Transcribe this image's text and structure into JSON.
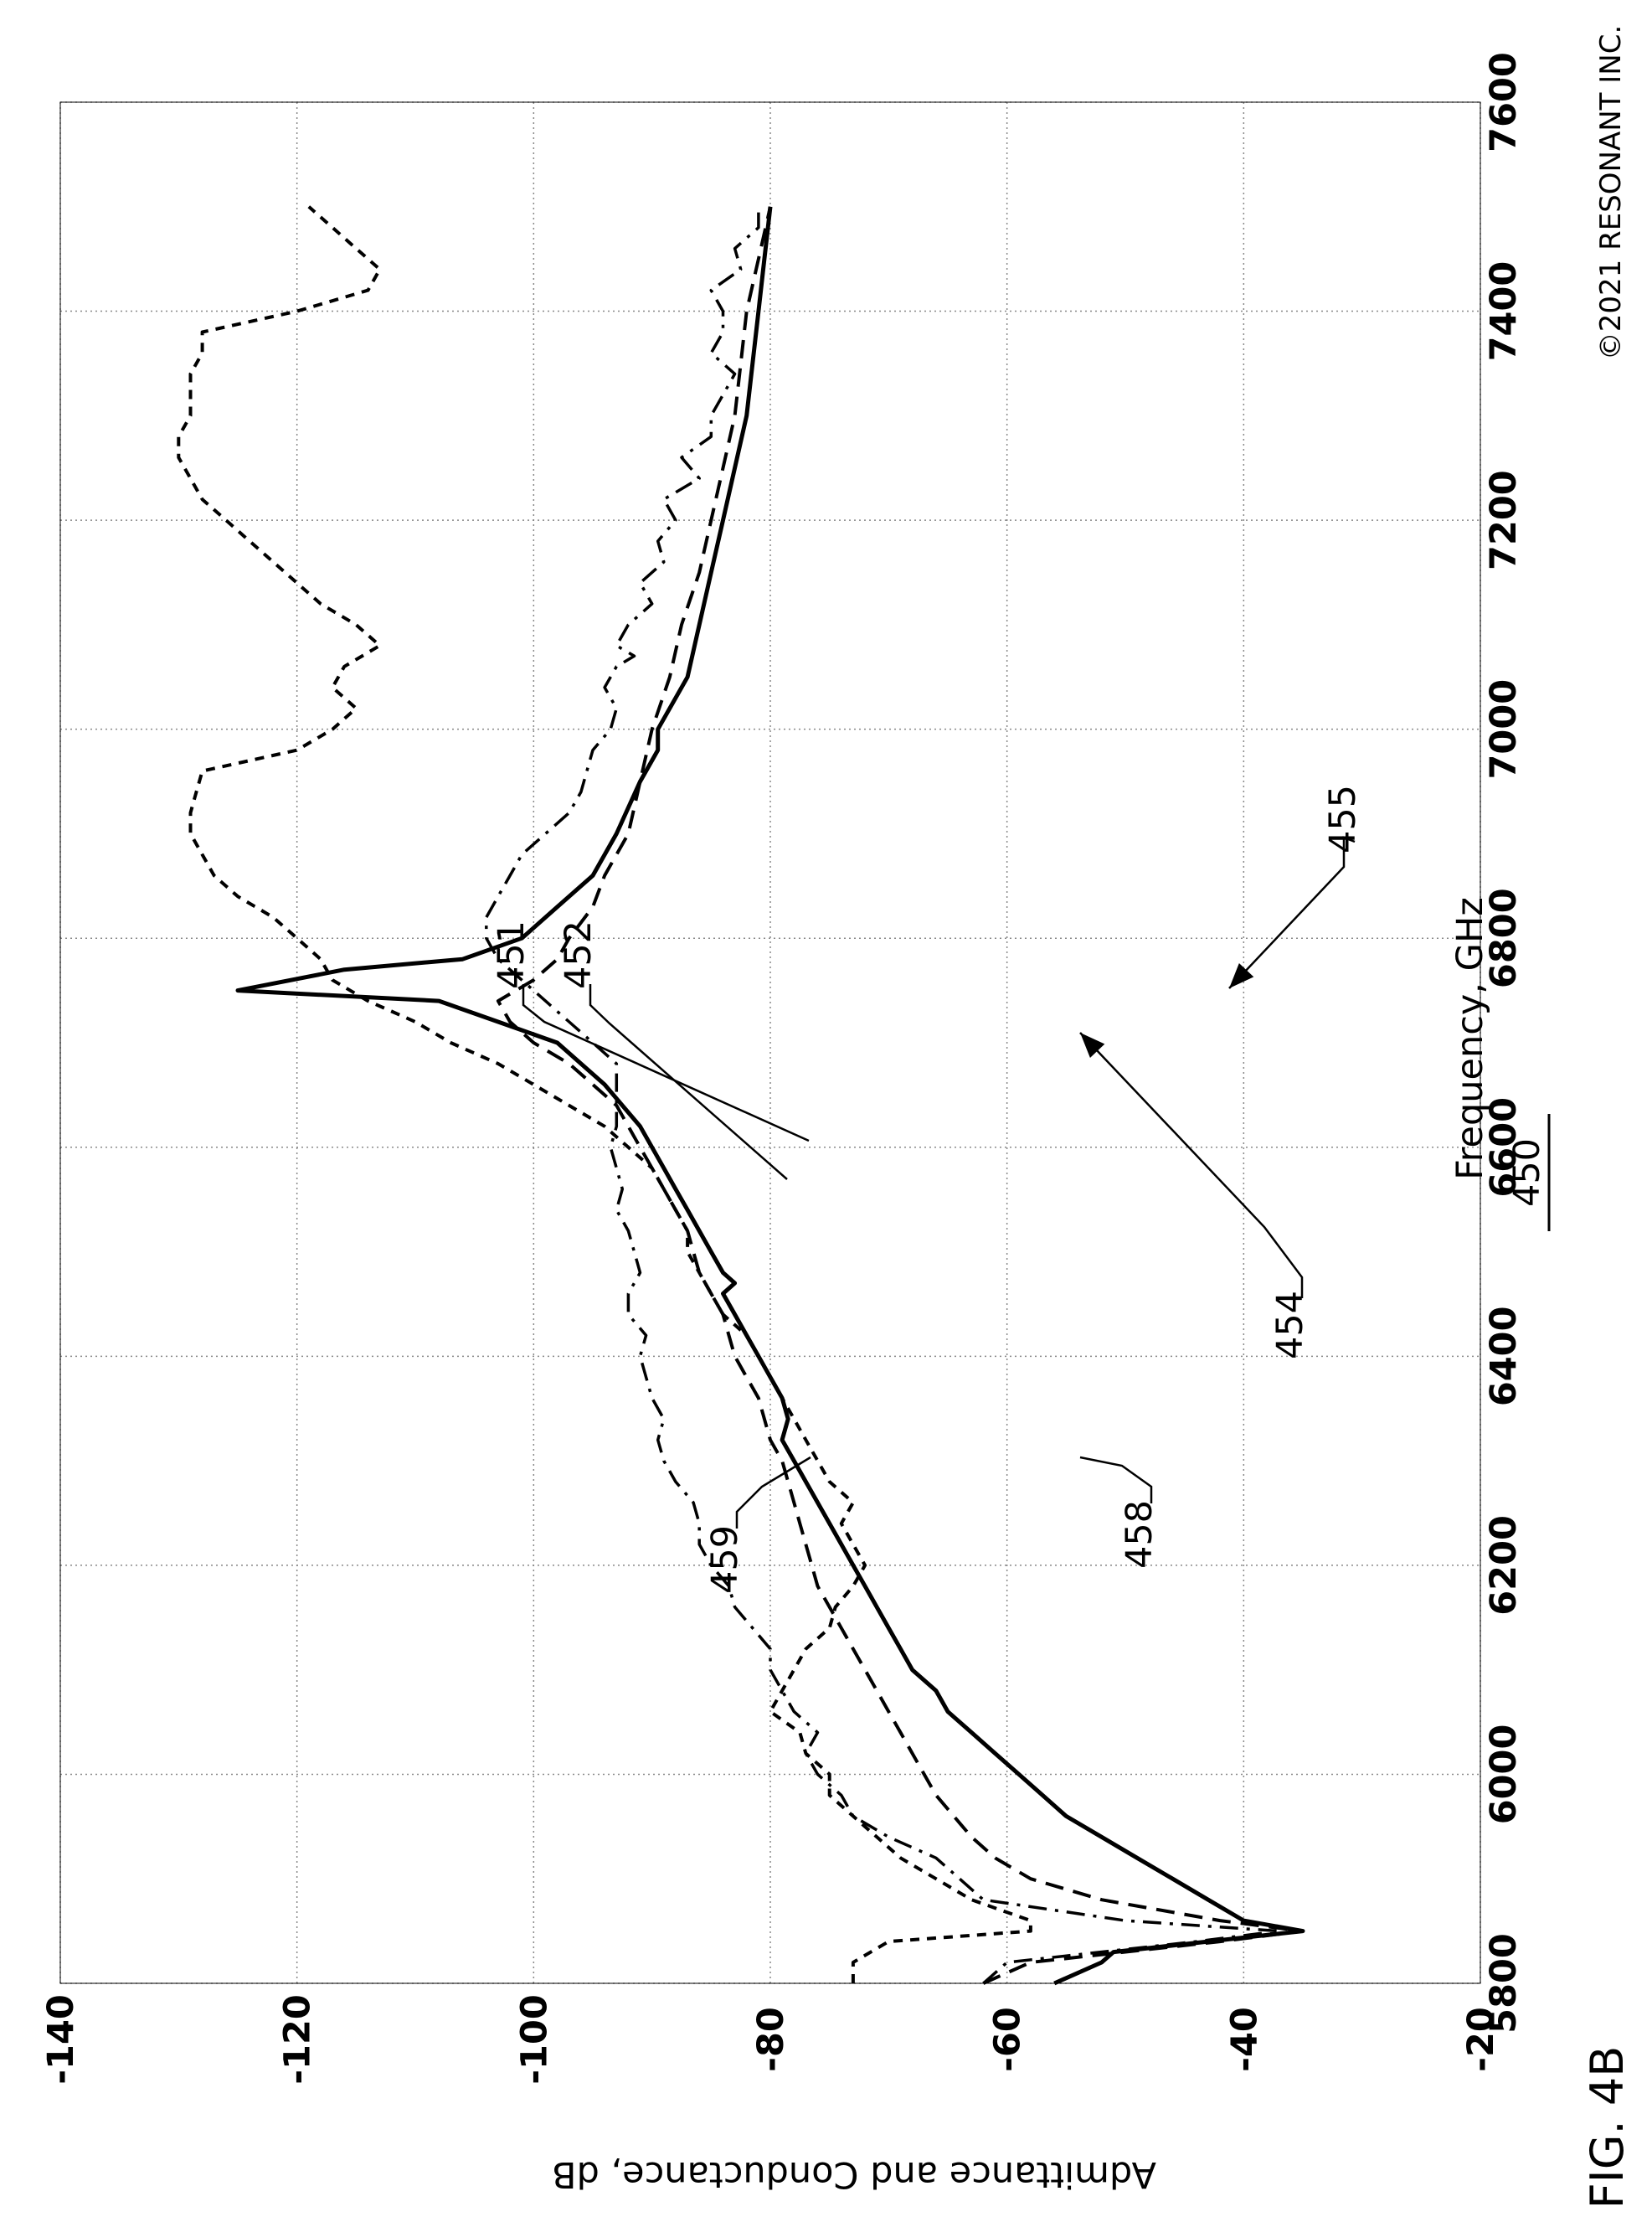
{
  "figure": {
    "label": "FIG. 4B",
    "number": "450",
    "copyright": "©2021 RESONANT INC."
  },
  "chart_data": {
    "type": "line",
    "xlabel": "Frequency, GHz",
    "ylabel": "Admittance and Conductance, dB",
    "xlim": [
      5800,
      7600
    ],
    "ylim": [
      -140,
      -20
    ],
    "x_ticks": [
      "5800",
      "6000",
      "6200",
      "6400",
      "6600",
      "6800",
      "7000",
      "7200",
      "7400",
      "7600"
    ],
    "y_ticks": [
      "-140",
      "-120",
      "-100",
      "-80",
      "-60",
      "-40",
      "-20"
    ],
    "grid": true,
    "series": [
      {
        "name": "451",
        "style": "solid",
        "points": [
          [
            5800,
            -56
          ],
          [
            5820,
            -52
          ],
          [
            5830,
            -51
          ],
          [
            5850,
            -35
          ],
          [
            5860,
            -40
          ],
          [
            5880,
            -43
          ],
          [
            5900,
            -46
          ],
          [
            5920,
            -49
          ],
          [
            5940,
            -52
          ],
          [
            5960,
            -55
          ],
          [
            5980,
            -57
          ],
          [
            6000,
            -59
          ],
          [
            6020,
            -61
          ],
          [
            6040,
            -63
          ],
          [
            6060,
            -65
          ],
          [
            6080,
            -66
          ],
          [
            6100,
            -68
          ],
          [
            6120,
            -69
          ],
          [
            6140,
            -70
          ],
          [
            6160,
            -71
          ],
          [
            6180,
            -72
          ],
          [
            6200,
            -73
          ],
          [
            6220,
            -74
          ],
          [
            6240,
            -75
          ],
          [
            6260,
            -76
          ],
          [
            6280,
            -77
          ],
          [
            6300,
            -78
          ],
          [
            6320,
            -79
          ],
          [
            6340,
            -78.5
          ],
          [
            6360,
            -79
          ],
          [
            6380,
            -80
          ],
          [
            6400,
            -81
          ],
          [
            6420,
            -82
          ],
          [
            6440,
            -83
          ],
          [
            6460,
            -84
          ],
          [
            6470,
            -83
          ],
          [
            6480,
            -84
          ],
          [
            6500,
            -85
          ],
          [
            6520,
            -86
          ],
          [
            6540,
            -87
          ],
          [
            6560,
            -88
          ],
          [
            6580,
            -89
          ],
          [
            6600,
            -90
          ],
          [
            6620,
            -91
          ],
          [
            6640,
            -92.5
          ],
          [
            6660,
            -94
          ],
          [
            6680,
            -96
          ],
          [
            6700,
            -98
          ],
          [
            6720,
            -103
          ],
          [
            6740,
            -108
          ],
          [
            6750,
            -125
          ],
          [
            6770,
            -116
          ],
          [
            6780,
            -106
          ],
          [
            6800,
            -101
          ],
          [
            6830,
            -98
          ],
          [
            6860,
            -95
          ],
          [
            6900,
            -93
          ],
          [
            6950,
            -91
          ],
          [
            6980,
            -89.5
          ],
          [
            7000,
            -89.5
          ],
          [
            7050,
            -87
          ],
          [
            7100,
            -86
          ],
          [
            7150,
            -85
          ],
          [
            7200,
            -84
          ],
          [
            7250,
            -83
          ],
          [
            7300,
            -82
          ],
          [
            7350,
            -81.5
          ],
          [
            7400,
            -81
          ],
          [
            7450,
            -80.5
          ],
          [
            7500,
            -80
          ]
        ]
      },
      {
        "name": "452",
        "style": "dashed",
        "points": [
          [
            5800,
            -62
          ],
          [
            5820,
            -58
          ],
          [
            5840,
            -42
          ],
          [
            5850,
            -35
          ],
          [
            5860,
            -42
          ],
          [
            5880,
            -52
          ],
          [
            5900,
            -58
          ],
          [
            5920,
            -61
          ],
          [
            5940,
            -63
          ],
          [
            5960,
            -64.5
          ],
          [
            5980,
            -66
          ],
          [
            6000,
            -67
          ],
          [
            6020,
            -68
          ],
          [
            6040,
            -69
          ],
          [
            6060,
            -70
          ],
          [
            6080,
            -71
          ],
          [
            6100,
            -72
          ],
          [
            6120,
            -73
          ],
          [
            6140,
            -74
          ],
          [
            6160,
            -75
          ],
          [
            6180,
            -76
          ],
          [
            6200,
            -76.5
          ],
          [
            6220,
            -77
          ],
          [
            6240,
            -77.5
          ],
          [
            6260,
            -78
          ],
          [
            6280,
            -78.5
          ],
          [
            6300,
            -79
          ],
          [
            6320,
            -80
          ],
          [
            6340,
            -80.5
          ],
          [
            6360,
            -81
          ],
          [
            6380,
            -82
          ],
          [
            6400,
            -83
          ],
          [
            6420,
            -83.5
          ],
          [
            6440,
            -84
          ],
          [
            6460,
            -85
          ],
          [
            6480,
            -86
          ],
          [
            6500,
            -86.5
          ],
          [
            6520,
            -87
          ],
          [
            6540,
            -88
          ],
          [
            6560,
            -89
          ],
          [
            6580,
            -90
          ],
          [
            6600,
            -91
          ],
          [
            6620,
            -92
          ],
          [
            6640,
            -93
          ],
          [
            6660,
            -95
          ],
          [
            6680,
            -97
          ],
          [
            6700,
            -100
          ],
          [
            6720,
            -102
          ],
          [
            6740,
            -103
          ],
          [
            6760,
            -100
          ],
          [
            6780,
            -98
          ],
          [
            6800,
            -97
          ],
          [
            6830,
            -95
          ],
          [
            6860,
            -94
          ],
          [
            6900,
            -92
          ],
          [
            6950,
            -91
          ],
          [
            7000,
            -90
          ],
          [
            7050,
            -88.5
          ],
          [
            7100,
            -87.5
          ],
          [
            7150,
            -86
          ],
          [
            7200,
            -85
          ],
          [
            7250,
            -84
          ],
          [
            7300,
            -83
          ],
          [
            7350,
            -82.5
          ],
          [
            7400,
            -82
          ],
          [
            7450,
            -81
          ],
          [
            7500,
            -80
          ]
        ]
      },
      {
        "name": "458",
        "style": "dash-dot",
        "points": [
          [
            5800,
            -62
          ],
          [
            5820,
            -60
          ],
          [
            5840,
            -44
          ],
          [
            5850,
            -37
          ],
          [
            5860,
            -50
          ],
          [
            5880,
            -62
          ],
          [
            5900,
            -64
          ],
          [
            5920,
            -66
          ],
          [
            5940,
            -70
          ],
          [
            5960,
            -73
          ],
          [
            5980,
            -74
          ],
          [
            6000,
            -76
          ],
          [
            6020,
            -77
          ],
          [
            6040,
            -76
          ],
          [
            6060,
            -78
          ],
          [
            6080,
            -79
          ],
          [
            6100,
            -80
          ],
          [
            6120,
            -80
          ],
          [
            6140,
            -81.5
          ],
          [
            6160,
            -83
          ],
          [
            6180,
            -83.5
          ],
          [
            6200,
            -85
          ],
          [
            6220,
            -86
          ],
          [
            6240,
            -86
          ],
          [
            6260,
            -86.5
          ],
          [
            6280,
            -88
          ],
          [
            6300,
            -89
          ],
          [
            6320,
            -89.5
          ],
          [
            6340,
            -89
          ],
          [
            6360,
            -90
          ],
          [
            6380,
            -90.5
          ],
          [
            6400,
            -91
          ],
          [
            6420,
            -90.5
          ],
          [
            6440,
            -92
          ],
          [
            6460,
            -92
          ],
          [
            6480,
            -91
          ],
          [
            6500,
            -91.5
          ],
          [
            6520,
            -92
          ],
          [
            6540,
            -93
          ],
          [
            6560,
            -92.5
          ],
          [
            6580,
            -93
          ],
          [
            6600,
            -93.5
          ],
          [
            6620,
            -93
          ],
          [
            6640,
            -93
          ],
          [
            6660,
            -93
          ],
          [
            6680,
            -93
          ],
          [
            6700,
            -95
          ],
          [
            6720,
            -97
          ],
          [
            6740,
            -99
          ],
          [
            6760,
            -101
          ],
          [
            6780,
            -103
          ],
          [
            6800,
            -104
          ],
          [
            6820,
            -104
          ],
          [
            6840,
            -103
          ],
          [
            6860,
            -102
          ],
          [
            6880,
            -101
          ],
          [
            6900,
            -99
          ],
          [
            6920,
            -97
          ],
          [
            6940,
            -96
          ],
          [
            6960,
            -95.5
          ],
          [
            6980,
            -95
          ],
          [
            7000,
            -93.5
          ],
          [
            7020,
            -93
          ],
          [
            7040,
            -94
          ],
          [
            7060,
            -93
          ],
          [
            7070,
            -91.5
          ],
          [
            7080,
            -93
          ],
          [
            7100,
            -92
          ],
          [
            7120,
            -90
          ],
          [
            7140,
            -91
          ],
          [
            7160,
            -89
          ],
          [
            7180,
            -89.5
          ],
          [
            7200,
            -88
          ],
          [
            7220,
            -89
          ],
          [
            7240,
            -86
          ],
          [
            7260,
            -87.5
          ],
          [
            7280,
            -85
          ],
          [
            7300,
            -85
          ],
          [
            7320,
            -84
          ],
          [
            7340,
            -83
          ],
          [
            7360,
            -85
          ],
          [
            7380,
            -84
          ],
          [
            7400,
            -84
          ],
          [
            7420,
            -85
          ],
          [
            7440,
            -82.5
          ],
          [
            7460,
            -83
          ],
          [
            7480,
            -81
          ],
          [
            7500,
            -81
          ]
        ]
      },
      {
        "name": "459",
        "style": "short-dash",
        "points": [
          [
            5800,
            -73
          ],
          [
            5820,
            -73
          ],
          [
            5840,
            -70
          ],
          [
            5850,
            -58
          ],
          [
            5860,
            -58
          ],
          [
            5880,
            -63
          ],
          [
            5900,
            -66
          ],
          [
            5920,
            -69
          ],
          [
            5940,
            -71
          ],
          [
            5960,
            -73
          ],
          [
            5980,
            -75
          ],
          [
            6000,
            -75
          ],
          [
            6020,
            -77
          ],
          [
            6040,
            -77.5
          ],
          [
            6060,
            -80
          ],
          [
            6080,
            -79
          ],
          [
            6100,
            -78
          ],
          [
            6120,
            -77
          ],
          [
            6140,
            -75
          ],
          [
            6160,
            -74.5
          ],
          [
            6180,
            -73
          ],
          [
            6200,
            -72
          ],
          [
            6220,
            -73
          ],
          [
            6240,
            -74
          ],
          [
            6260,
            -73
          ],
          [
            6280,
            -75
          ],
          [
            6300,
            -76
          ],
          [
            6320,
            -77
          ],
          [
            6340,
            -78
          ],
          [
            6360,
            -79
          ],
          [
            6380,
            -80
          ],
          [
            6400,
            -81
          ],
          [
            6420,
            -82
          ],
          [
            6440,
            -84
          ],
          [
            6460,
            -85
          ],
          [
            6480,
            -86
          ],
          [
            6500,
            -87
          ],
          [
            6520,
            -87
          ],
          [
            6540,
            -88
          ],
          [
            6560,
            -89
          ],
          [
            6580,
            -90
          ],
          [
            6600,
            -92
          ],
          [
            6620,
            -94
          ],
          [
            6640,
            -97
          ],
          [
            6660,
            -100
          ],
          [
            6680,
            -103
          ],
          [
            6700,
            -107
          ],
          [
            6720,
            -110
          ],
          [
            6740,
            -114
          ],
          [
            6760,
            -117
          ],
          [
            6780,
            -118
          ],
          [
            6800,
            -120
          ],
          [
            6820,
            -122
          ],
          [
            6840,
            -125
          ],
          [
            6860,
            -127
          ],
          [
            6880,
            -128
          ],
          [
            6900,
            -129
          ],
          [
            6920,
            -129
          ],
          [
            6940,
            -128.5
          ],
          [
            6960,
            -128
          ],
          [
            6980,
            -120
          ],
          [
            7000,
            -117
          ],
          [
            7020,
            -115
          ],
          [
            7040,
            -117
          ],
          [
            7060,
            -116
          ],
          [
            7080,
            -113
          ],
          [
            7100,
            -115
          ],
          [
            7120,
            -118
          ],
          [
            7140,
            -120
          ],
          [
            7160,
            -122
          ],
          [
            7180,
            -124
          ],
          [
            7200,
            -126
          ],
          [
            7220,
            -128
          ],
          [
            7240,
            -129
          ],
          [
            7260,
            -130
          ],
          [
            7280,
            -130
          ],
          [
            7300,
            -129
          ],
          [
            7320,
            -129
          ],
          [
            7340,
            -129
          ],
          [
            7360,
            -128
          ],
          [
            7380,
            -128
          ],
          [
            7400,
            -120
          ],
          [
            7420,
            -114
          ],
          [
            7440,
            -113
          ],
          [
            7460,
            -115
          ],
          [
            7480,
            -117
          ],
          [
            7500,
            -119
          ]
        ]
      }
    ],
    "annotations": [
      "451",
      "452",
      "454",
      "455",
      "458",
      "459"
    ]
  }
}
